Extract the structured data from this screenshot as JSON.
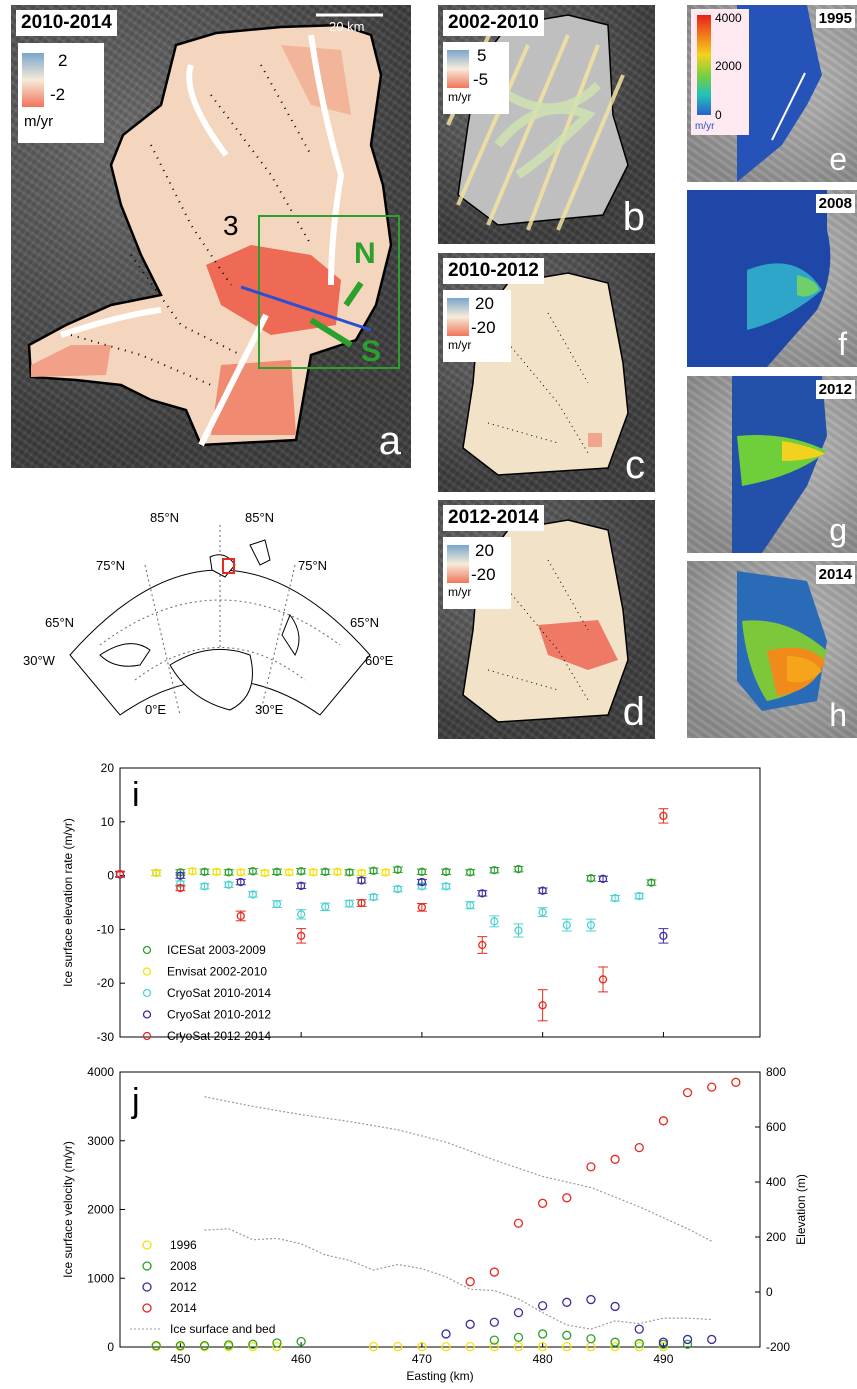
{
  "panel_a": {
    "year": "2010-2014",
    "letter": "a",
    "scale_label": "20 km",
    "cbar_top": "2",
    "cbar_bottom": "-2",
    "cbar_unit": "m/yr",
    "label_3": "3",
    "label_n": "N",
    "label_s": "S"
  },
  "panel_b": {
    "year": "2002-2010",
    "letter": "b",
    "cbar_top": "5",
    "cbar_bottom": "-5",
    "cbar_unit": "m/yr"
  },
  "panel_c": {
    "year": "2010-2012",
    "letter": "c",
    "cbar_top": "20",
    "cbar_bottom": "-20",
    "cbar_unit": "m/yr"
  },
  "panel_d": {
    "year": "2012-2014",
    "letter": "d",
    "cbar_top": "20",
    "cbar_bottom": "-20",
    "cbar_unit": "m/yr"
  },
  "panel_e": {
    "year": "1995",
    "letter": "e",
    "cbar_top": "4000",
    "cbar_mid": "2000",
    "cbar_bottom": "0",
    "cbar_unit": "m/yr",
    "colors": [
      "#e8201a",
      "#f07a1a",
      "#f3d21f",
      "#7ccf3a",
      "#23c2b8",
      "#2a5fd0"
    ]
  },
  "panel_f": {
    "year": "2008",
    "letter": "f"
  },
  "panel_g": {
    "year": "2012",
    "letter": "g"
  },
  "panel_h": {
    "year": "2014",
    "letter": "h"
  },
  "map": {
    "lat_labels": [
      "85°N",
      "85°N",
      "75°N",
      "75°N",
      "65°N",
      "65°N"
    ],
    "lon_labels": [
      "30°W",
      "60°E",
      "0°E",
      "30°E"
    ]
  },
  "chart_data": [
    {
      "type": "scatter",
      "panel_letter": "i",
      "xlabel": "",
      "ylabel": "Ice surface elevation rate (m/yr)",
      "xlim": [
        445,
        498
      ],
      "ylim": [
        -30,
        20
      ],
      "yticks": [
        -30,
        -20,
        -10,
        0,
        10,
        20
      ],
      "xticks": [
        450,
        460,
        470,
        480,
        490
      ],
      "legend_position": "lower-left",
      "series": [
        {
          "name": "ICESat 2003-2009",
          "color": "#2ca02c",
          "x": [
            445,
            448,
            450,
            452,
            454,
            456,
            458,
            460,
            462,
            464,
            466,
            468,
            470,
            472,
            474,
            476,
            478,
            484,
            489
          ],
          "y": [
            0.3,
            0.5,
            0.6,
            0.7,
            0.6,
            0.8,
            0.7,
            0.8,
            0.7,
            0.6,
            0.9,
            1.1,
            0.7,
            0.7,
            0.6,
            1.0,
            1.2,
            -0.5,
            -1.3
          ]
        },
        {
          "name": "Envisat 2002-2010",
          "color": "#f2e20c",
          "x": [
            448,
            451,
            453,
            455,
            457,
            459,
            461,
            463,
            465,
            467
          ],
          "y": [
            0.5,
            0.8,
            0.7,
            0.6,
            0.5,
            0.6,
            0.6,
            0.7,
            0.5,
            0.6
          ]
        },
        {
          "name": "CryoSat 2010-2014",
          "color": "#4fd2d2",
          "x": [
            450,
            452,
            454,
            456,
            458,
            460,
            462,
            464,
            466,
            468,
            470,
            472,
            474,
            476,
            478,
            480,
            482,
            484,
            486,
            488
          ],
          "y": [
            -1.5,
            -2.0,
            -1.7,
            -3.5,
            -5.3,
            -7.2,
            -5.8,
            -5.2,
            -4.0,
            -2.5,
            -2.0,
            -2.0,
            -5.5,
            -8.5,
            -10.2,
            -6.8,
            -9.2,
            -9.2,
            -4.2,
            -3.8
          ]
        },
        {
          "name": "CryoSat 2010-2012",
          "color": "#3b2e9e",
          "x": [
            445,
            450,
            455,
            460,
            465,
            470,
            475,
            480,
            485,
            490
          ],
          "y": [
            0.2,
            0.0,
            -1.2,
            -1.9,
            -0.9,
            -1.2,
            -3.3,
            -2.8,
            -0.6,
            -11.2
          ]
        },
        {
          "name": "CryoSat 2012-2014",
          "color": "#e8281e",
          "x": [
            445,
            450,
            455,
            460,
            465,
            470,
            475,
            480,
            485,
            490
          ],
          "y": [
            0.3,
            -2.3,
            -7.5,
            -11.2,
            -5.1,
            -5.9,
            -12.9,
            -24.1,
            -19.3,
            11.1
          ]
        }
      ]
    },
    {
      "type": "scatter",
      "panel_letter": "j",
      "xlabel": "Easting (km)",
      "ylabel": "Ice surface velocity (m/yr)",
      "y2label": "Elevation (m)",
      "xlim": [
        445,
        498
      ],
      "ylim": [
        0,
        4000
      ],
      "y2lim": [
        -200,
        800
      ],
      "yticks": [
        0,
        1000,
        2000,
        3000,
        4000
      ],
      "y2ticks": [
        -200,
        0,
        200,
        400,
        600,
        800
      ],
      "xticks": [
        450,
        460,
        470,
        480,
        490
      ],
      "xtick_labels": [
        "450",
        "460",
        "470",
        "480",
        "490"
      ],
      "legend_position": "lower-left",
      "series": [
        {
          "name": "1996",
          "color": "#f2e20c",
          "x": [
            448,
            450,
            452,
            454,
            456,
            458,
            466,
            468,
            470,
            472,
            474,
            476,
            478,
            480,
            482,
            484,
            486,
            488,
            490
          ],
          "y": [
            5,
            5,
            5,
            5,
            5,
            5,
            5,
            5,
            5,
            5,
            5,
            5,
            5,
            5,
            5,
            5,
            5,
            5,
            5
          ]
        },
        {
          "name": "2008",
          "color": "#2ca02c",
          "x": [
            448,
            450,
            452,
            454,
            456,
            458,
            460,
            476,
            478,
            480,
            482,
            484,
            486,
            488,
            490,
            492
          ],
          "y": [
            20,
            20,
            20,
            30,
            40,
            60,
            80,
            100,
            140,
            190,
            170,
            120,
            70,
            50,
            40,
            40
          ]
        },
        {
          "name": "2012",
          "color": "#3b2e9e",
          "x": [
            472,
            474,
            476,
            478,
            480,
            482,
            484,
            486,
            488,
            490,
            492,
            494
          ],
          "y": [
            190,
            330,
            360,
            500,
            600,
            650,
            690,
            590,
            260,
            70,
            110,
            110
          ]
        },
        {
          "name": "2014",
          "color": "#e8281e",
          "x": [
            474,
            476,
            478,
            480,
            482,
            484,
            486,
            488,
            490,
            492,
            494,
            496
          ],
          "y": [
            950,
            1090,
            1800,
            2090,
            2170,
            2620,
            2730,
            2900,
            3290,
            3700,
            3780,
            3850
          ]
        }
      ],
      "elevation_series": {
        "name": "Ice surface and bed",
        "color": "#9a9a9a",
        "surface_x": [
          452,
          456,
          460,
          464,
          468,
          472,
          476,
          480,
          484,
          488,
          492,
          494
        ],
        "surface_y": [
          710,
          675,
          645,
          620,
          590,
          545,
          480,
          420,
          380,
          310,
          230,
          185
        ],
        "bed_x": [
          452,
          454,
          456,
          458,
          460,
          462,
          464,
          466,
          468,
          470,
          472,
          474,
          476,
          478,
          480,
          482,
          484,
          486,
          488,
          490,
          492,
          494
        ],
        "bed_y": [
          225,
          230,
          190,
          195,
          175,
          135,
          115,
          80,
          100,
          85,
          55,
          10,
          5,
          -25,
          -75,
          -120,
          -135,
          -105,
          -115,
          -95,
          -95,
          -100
        ]
      }
    }
  ]
}
